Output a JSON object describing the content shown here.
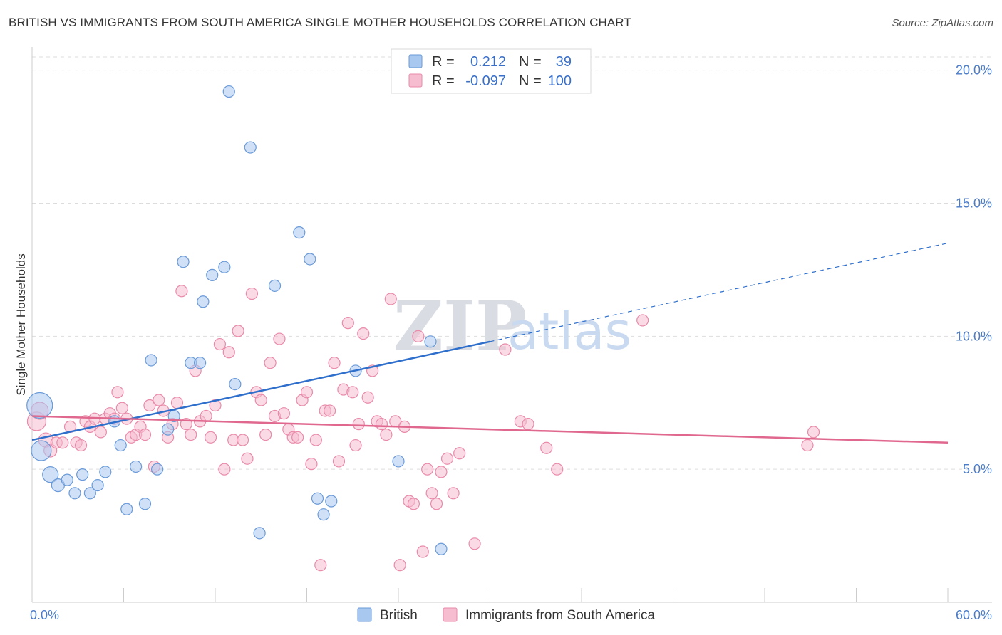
{
  "header": {
    "title": "BRITISH VS IMMIGRANTS FROM SOUTH AMERICA SINGLE MOTHER HOUSEHOLDS CORRELATION CHART",
    "source": "Source: ZipAtlas.com"
  },
  "watermark": {
    "zip": "ZIP",
    "atlas": "atlas"
  },
  "legend": {
    "rows": [
      {
        "r_label": "R =",
        "r_value": "0.212",
        "n_label": "N =",
        "n_value": "39"
      },
      {
        "r_label": "R =",
        "r_value": "-0.097",
        "n_label": "N =",
        "n_value": "100"
      }
    ]
  },
  "colors": {
    "british_fill": "#a9c8f0",
    "british_stroke": "#6a9ad8",
    "british_line": "#2f6fcc",
    "sa_fill": "#f6bccf",
    "sa_stroke": "#e88aa8",
    "sa_line": "#e0688f",
    "grid": "#dddddd",
    "axis_text": "#4a7cc9"
  },
  "chart_data": {
    "type": "scatter",
    "title": "BRITISH VS IMMIGRANTS FROM SOUTH AMERICA SINGLE MOTHER HOUSEHOLDS CORRELATION CHART",
    "xlabel": "",
    "ylabel": "Single Mother Households",
    "xlim": [
      0,
      60
    ],
    "ylim": [
      0,
      20.5
    ],
    "x_tick_labels": [
      "0.0%",
      "60.0%"
    ],
    "y_ticks": [
      5,
      10,
      15,
      20
    ],
    "y_tick_labels": [
      "5.0%",
      "10.0%",
      "15.0%",
      "20.0%"
    ],
    "grid": true,
    "legend_position": "bottom",
    "series": [
      {
        "name": "British",
        "r": 0.212,
        "n": 39,
        "trend": {
          "x0": 0,
          "y0": 6.1,
          "x1": 30,
          "y1": 9.8,
          "dashed_to_x": 60,
          "dashed_to_y": 13.5
        },
        "points": [
          [
            0.5,
            7.4,
            18
          ],
          [
            0.6,
            5.7,
            14
          ],
          [
            1.2,
            4.8,
            11
          ],
          [
            1.7,
            4.4,
            9
          ],
          [
            2.3,
            4.6,
            8
          ],
          [
            2.8,
            4.1,
            8
          ],
          [
            3.3,
            4.8,
            8
          ],
          [
            3.8,
            4.1,
            8
          ],
          [
            4.3,
            4.4,
            8
          ],
          [
            4.8,
            4.9,
            8
          ],
          [
            5.4,
            6.8,
            8
          ],
          [
            5.8,
            5.9,
            8
          ],
          [
            6.2,
            3.5,
            8
          ],
          [
            6.8,
            5.1,
            8
          ],
          [
            7.4,
            3.7,
            8
          ],
          [
            7.8,
            9.1,
            8
          ],
          [
            8.2,
            5.0,
            8
          ],
          [
            8.9,
            6.5,
            8
          ],
          [
            9.3,
            7.0,
            8
          ],
          [
            9.9,
            12.8,
            8
          ],
          [
            10.4,
            9.0,
            8
          ],
          [
            11.0,
            9.0,
            8
          ],
          [
            11.2,
            11.3,
            8
          ],
          [
            11.8,
            12.3,
            8
          ],
          [
            12.6,
            12.6,
            8
          ],
          [
            12.9,
            19.2,
            8
          ],
          [
            13.3,
            8.2,
            8
          ],
          [
            14.3,
            17.1,
            8
          ],
          [
            14.9,
            2.6,
            8
          ],
          [
            15.9,
            11.9,
            8
          ],
          [
            17.5,
            13.9,
            8
          ],
          [
            18.2,
            12.9,
            8
          ],
          [
            18.7,
            3.9,
            8
          ],
          [
            19.1,
            3.3,
            8
          ],
          [
            19.6,
            3.8,
            8
          ],
          [
            21.2,
            8.7,
            8
          ],
          [
            24.0,
            5.3,
            8
          ],
          [
            26.1,
            9.8,
            8
          ],
          [
            26.8,
            2.0,
            8
          ]
        ]
      },
      {
        "name": "Immigrants from South America",
        "r": -0.097,
        "n": 100,
        "trend": {
          "x0": 0,
          "y0": 7.0,
          "x1": 60,
          "y1": 6.0
        },
        "points": [
          [
            0.3,
            6.8,
            13
          ],
          [
            0.5,
            7.2,
            12
          ],
          [
            0.9,
            6.1,
            10
          ],
          [
            1.2,
            5.7,
            9
          ],
          [
            1.6,
            6.0,
            8
          ],
          [
            2.0,
            6.0,
            8
          ],
          [
            2.5,
            6.6,
            8
          ],
          [
            2.9,
            6.0,
            8
          ],
          [
            3.2,
            5.9,
            8
          ],
          [
            3.5,
            6.8,
            8
          ],
          [
            3.8,
            6.6,
            8
          ],
          [
            4.1,
            6.9,
            8
          ],
          [
            4.5,
            6.4,
            8
          ],
          [
            4.8,
            6.9,
            8
          ],
          [
            5.1,
            7.1,
            8
          ],
          [
            5.4,
            6.9,
            8
          ],
          [
            5.6,
            7.9,
            8
          ],
          [
            5.9,
            7.3,
            8
          ],
          [
            6.2,
            6.9,
            8
          ],
          [
            6.5,
            6.2,
            8
          ],
          [
            6.8,
            6.3,
            8
          ],
          [
            7.1,
            6.6,
            8
          ],
          [
            7.4,
            6.3,
            8
          ],
          [
            7.7,
            7.4,
            8
          ],
          [
            8.0,
            5.1,
            8
          ],
          [
            8.3,
            7.6,
            8
          ],
          [
            8.6,
            7.2,
            8
          ],
          [
            8.9,
            6.2,
            8
          ],
          [
            9.2,
            6.7,
            8
          ],
          [
            9.5,
            7.5,
            8
          ],
          [
            9.8,
            11.7,
            8
          ],
          [
            10.1,
            6.7,
            8
          ],
          [
            10.4,
            6.3,
            8
          ],
          [
            10.7,
            8.7,
            8
          ],
          [
            11.0,
            6.8,
            8
          ],
          [
            11.4,
            7.0,
            8
          ],
          [
            11.7,
            6.2,
            8
          ],
          [
            12.0,
            7.4,
            8
          ],
          [
            12.3,
            9.7,
            8
          ],
          [
            12.6,
            5.0,
            8
          ],
          [
            12.9,
            9.4,
            8
          ],
          [
            13.2,
            6.1,
            8
          ],
          [
            13.5,
            10.2,
            8
          ],
          [
            13.8,
            6.1,
            8
          ],
          [
            14.1,
            5.4,
            8
          ],
          [
            14.4,
            11.6,
            8
          ],
          [
            14.7,
            7.9,
            8
          ],
          [
            15.0,
            7.6,
            8
          ],
          [
            15.3,
            6.3,
            8
          ],
          [
            15.6,
            9.0,
            8
          ],
          [
            15.9,
            7.0,
            8
          ],
          [
            16.2,
            9.9,
            8
          ],
          [
            16.5,
            7.1,
            8
          ],
          [
            16.8,
            6.5,
            8
          ],
          [
            17.1,
            6.2,
            8
          ],
          [
            17.4,
            6.2,
            8
          ],
          [
            17.7,
            7.6,
            8
          ],
          [
            18.0,
            7.9,
            8
          ],
          [
            18.3,
            5.2,
            8
          ],
          [
            18.6,
            6.1,
            8
          ],
          [
            18.9,
            1.4,
            8
          ],
          [
            19.2,
            7.2,
            8
          ],
          [
            19.5,
            7.2,
            8
          ],
          [
            19.8,
            9.0,
            8
          ],
          [
            20.1,
            5.3,
            8
          ],
          [
            20.4,
            8.0,
            8
          ],
          [
            20.7,
            10.5,
            8
          ],
          [
            21.0,
            7.9,
            8
          ],
          [
            21.4,
            6.7,
            8
          ],
          [
            21.7,
            10.1,
            8
          ],
          [
            22.0,
            7.7,
            8
          ],
          [
            22.3,
            8.7,
            8
          ],
          [
            22.6,
            6.8,
            8
          ],
          [
            22.9,
            6.7,
            8
          ],
          [
            23.2,
            6.3,
            8
          ],
          [
            23.5,
            11.4,
            8
          ],
          [
            23.8,
            6.8,
            8
          ],
          [
            24.1,
            1.4,
            8
          ],
          [
            24.4,
            6.6,
            8
          ],
          [
            24.7,
            3.8,
            8
          ],
          [
            25.0,
            3.7,
            8
          ],
          [
            25.3,
            10.0,
            8
          ],
          [
            25.6,
            1.9,
            8
          ],
          [
            25.9,
            5.0,
            8
          ],
          [
            26.2,
            4.1,
            8
          ],
          [
            26.5,
            3.7,
            8
          ],
          [
            26.8,
            4.9,
            8
          ],
          [
            27.2,
            5.4,
            8
          ],
          [
            27.6,
            4.1,
            8
          ],
          [
            28.0,
            5.6,
            8
          ],
          [
            29.0,
            2.2,
            8
          ],
          [
            31.0,
            9.5,
            8
          ],
          [
            32.0,
            6.8,
            8
          ],
          [
            32.5,
            6.7,
            8
          ],
          [
            33.7,
            5.8,
            8
          ],
          [
            34.4,
            5.0,
            8
          ],
          [
            40.0,
            10.6,
            8
          ],
          [
            50.8,
            5.9,
            8
          ],
          [
            51.2,
            6.4,
            8
          ],
          [
            21.2,
            5.9,
            8
          ]
        ]
      }
    ]
  },
  "bottom_legend": {
    "items": [
      {
        "label": "British"
      },
      {
        "label": "Immigrants from South America"
      }
    ]
  }
}
